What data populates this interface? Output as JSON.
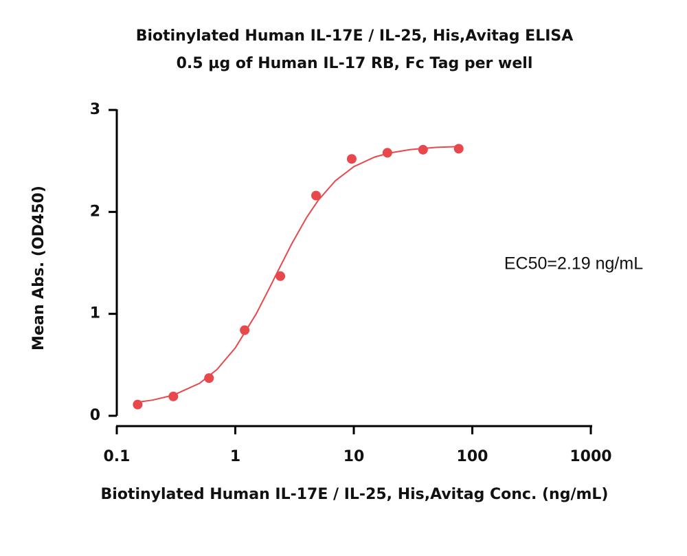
{
  "chart_data": {
    "type": "scatter",
    "title": "Biotinylated Human IL-17E / IL-25, His,Avitag ELISA",
    "subtitle": "0.5 µg of Human IL-17 RB, Fc Tag per well",
    "x_label": "Biotinylated Human IL-17E / IL-25, His,Avitag Conc. (ng/mL)",
    "y_label": "Mean Abs. (OD450)",
    "annotation": "EC50=2.19 ng/mL",
    "x": [
      0.15,
      0.3,
      0.6,
      1.2,
      2.4,
      4.8,
      9.6,
      19.2,
      38.4,
      76.8
    ],
    "values": [
      0.11,
      0.19,
      0.37,
      0.84,
      1.37,
      2.16,
      2.52,
      2.58,
      2.61,
      2.62
    ],
    "color": "#e8474c",
    "fit": {
      "x": [
        0.15,
        0.2,
        0.3,
        0.5,
        0.7,
        1,
        1.5,
        2,
        2.19,
        3,
        4,
        5,
        7,
        10,
        15,
        20,
        30,
        50,
        76.8
      ],
      "values": [
        0.134,
        0.154,
        0.202,
        0.319,
        0.454,
        0.666,
        1.0,
        1.282,
        1.375,
        1.689,
        1.946,
        2.113,
        2.306,
        2.444,
        2.538,
        2.578,
        2.612,
        2.633,
        2.641
      ]
    },
    "xscale": "log",
    "xlim": [
      0.1,
      1000
    ],
    "xticks": [
      0.1,
      1,
      10,
      100,
      1000
    ],
    "ylim": [
      0,
      3
    ],
    "yticks": [
      0,
      1,
      2,
      3
    ]
  }
}
